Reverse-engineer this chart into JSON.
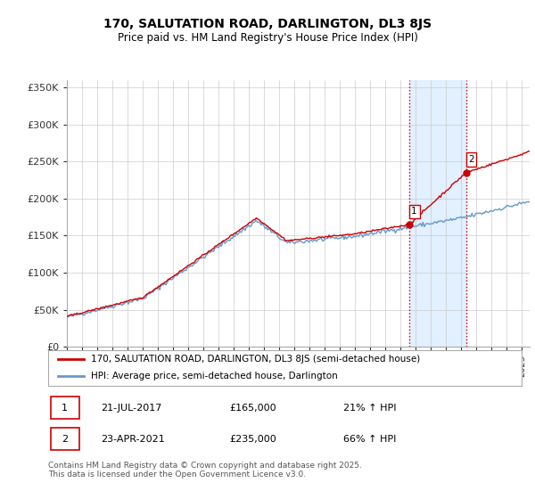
{
  "title": "170, SALUTATION ROAD, DARLINGTON, DL3 8JS",
  "subtitle": "Price paid vs. HM Land Registry's House Price Index (HPI)",
  "ylabel_ticks": [
    "£0",
    "£50K",
    "£100K",
    "£150K",
    "£200K",
    "£250K",
    "£300K",
    "£350K"
  ],
  "ytick_values": [
    0,
    50000,
    100000,
    150000,
    200000,
    250000,
    300000,
    350000
  ],
  "ylim": [
    0,
    360000
  ],
  "xlim_start": 1995.0,
  "xlim_end": 2025.5,
  "hpi_color": "#6699cc",
  "price_color": "#cc0000",
  "vline_color": "#cc0000",
  "shade_color": "#ddeeff",
  "purchase1_x": 2017.55,
  "purchase1_y": 165000,
  "purchase2_x": 2021.31,
  "purchase2_y": 235000,
  "legend_line1": "170, SALUTATION ROAD, DARLINGTON, DL3 8JS (semi-detached house)",
  "legend_line2": "HPI: Average price, semi-detached house, Darlington",
  "annotation1_date": "21-JUL-2017",
  "annotation1_price": "£165,000",
  "annotation1_hpi": "21% ↑ HPI",
  "annotation2_date": "23-APR-2021",
  "annotation2_price": "£235,000",
  "annotation2_hpi": "66% ↑ HPI",
  "footer": "Contains HM Land Registry data © Crown copyright and database right 2025.\nThis data is licensed under the Open Government Licence v3.0.",
  "background_color": "#ffffff",
  "grid_color": "#cccccc"
}
